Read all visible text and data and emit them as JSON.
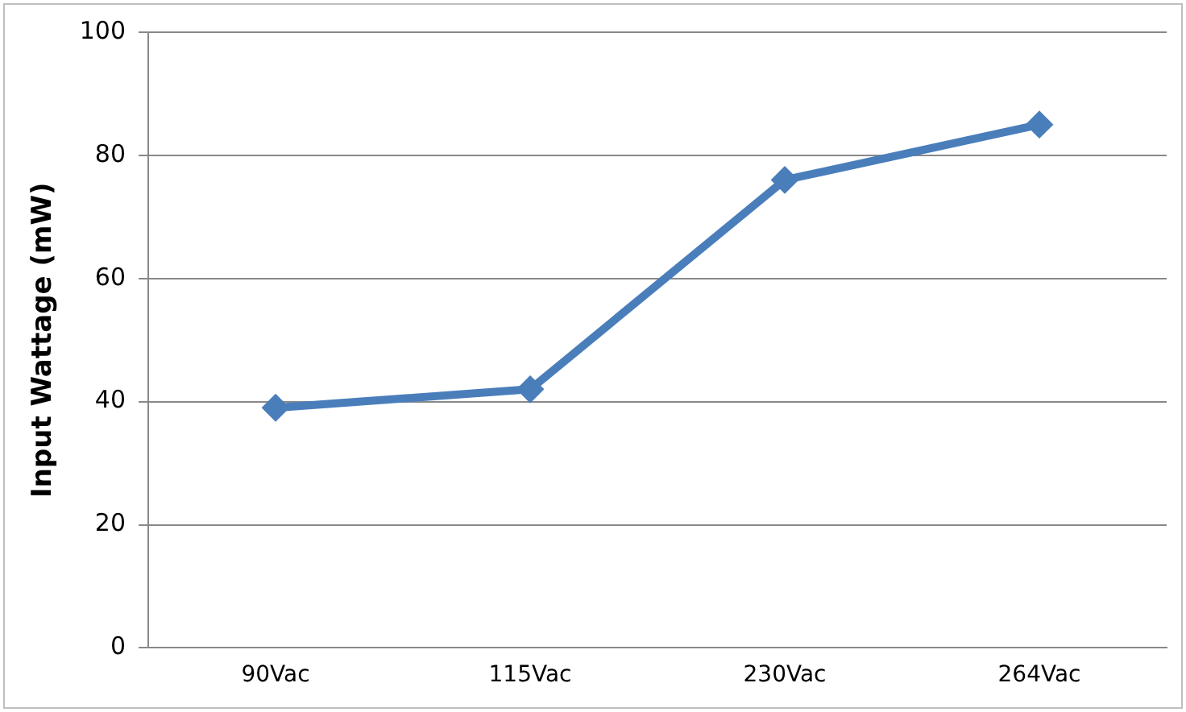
{
  "chart_data": {
    "type": "line",
    "ylabel": "Input Wattage (mW)",
    "categories": [
      "90Vac",
      "115Vac",
      "230Vac",
      "264Vac"
    ],
    "series": [
      {
        "color": "#4a7ebb",
        "values": [
          39,
          42,
          76,
          85
        ]
      }
    ],
    "ylim": [
      0,
      100
    ],
    "yticks": [
      0,
      20,
      40,
      60,
      80,
      100
    ],
    "grid": "y",
    "legend": false,
    "marker": "diamond",
    "line_style": "solid"
  }
}
